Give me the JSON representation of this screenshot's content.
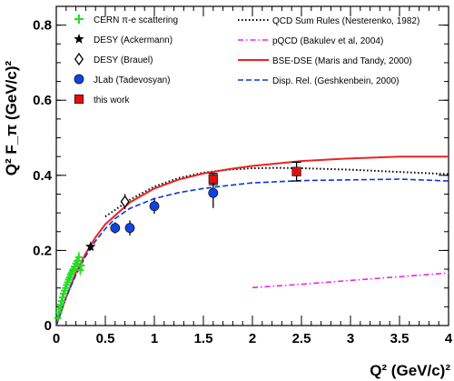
{
  "chart_data": {
    "type": "scatter",
    "xlabel": "Q² (GeV/c)²",
    "ylabel": "Q² F_π (GeV/c)²",
    "xlim": [
      0,
      4
    ],
    "ylim": [
      0,
      0.85
    ],
    "x_ticks": [
      "0",
      "0.5",
      "1",
      "1.5",
      "2",
      "2.5",
      "3",
      "3.5",
      "4"
    ],
    "y_ticks": [
      "0",
      "0.2",
      "0.4",
      "0.6",
      "0.8"
    ],
    "x_tick_values": [
      0,
      0.5,
      1,
      1.5,
      2,
      2.5,
      3,
      3.5,
      4
    ],
    "y_tick_values": [
      0,
      0.2,
      0.4,
      0.6,
      0.8
    ],
    "data_series": [
      {
        "name": "CERN π-e scattering",
        "marker": "cross",
        "color": "#22dd22",
        "points": [
          {
            "x": 0.015,
            "y": 0.02,
            "err": 0.0
          },
          {
            "x": 0.025,
            "y": 0.035,
            "err": 0.005
          },
          {
            "x": 0.035,
            "y": 0.045,
            "err": 0.005
          },
          {
            "x": 0.045,
            "y": 0.055,
            "err": 0.005
          },
          {
            "x": 0.055,
            "y": 0.065,
            "err": 0.005
          },
          {
            "x": 0.065,
            "y": 0.075,
            "err": 0.005
          },
          {
            "x": 0.075,
            "y": 0.085,
            "err": 0.006
          },
          {
            "x": 0.085,
            "y": 0.093,
            "err": 0.006
          },
          {
            "x": 0.095,
            "y": 0.1,
            "err": 0.006
          },
          {
            "x": 0.105,
            "y": 0.108,
            "err": 0.007
          },
          {
            "x": 0.115,
            "y": 0.115,
            "err": 0.007
          },
          {
            "x": 0.125,
            "y": 0.122,
            "err": 0.007
          },
          {
            "x": 0.135,
            "y": 0.128,
            "err": 0.008
          },
          {
            "x": 0.145,
            "y": 0.135,
            "err": 0.008
          },
          {
            "x": 0.155,
            "y": 0.14,
            "err": 0.009
          },
          {
            "x": 0.165,
            "y": 0.146,
            "err": 0.009
          },
          {
            "x": 0.175,
            "y": 0.15,
            "err": 0.01
          },
          {
            "x": 0.185,
            "y": 0.157,
            "err": 0.011
          },
          {
            "x": 0.2,
            "y": 0.165,
            "err": 0.012
          },
          {
            "x": 0.215,
            "y": 0.172,
            "err": 0.013
          },
          {
            "x": 0.23,
            "y": 0.182,
            "err": 0.014
          },
          {
            "x": 0.245,
            "y": 0.148,
            "err": 0.014
          },
          {
            "x": 0.255,
            "y": 0.16,
            "err": 0.015
          }
        ]
      },
      {
        "name": "DESY (Ackermann)",
        "marker": "star",
        "color": "#000000",
        "points": [
          {
            "x": 0.35,
            "y": 0.21,
            "err": 0.01
          }
        ]
      },
      {
        "name": "DESY (Brauel)",
        "marker": "diamond",
        "color": "#000000",
        "points": [
          {
            "x": 0.7,
            "y": 0.33,
            "err": 0.02
          }
        ]
      },
      {
        "name": "JLab (Tadevosyan)",
        "marker": "circle",
        "color": "#1144dd",
        "points": [
          {
            "x": 0.6,
            "y": 0.26,
            "err": 0.015
          },
          {
            "x": 0.75,
            "y": 0.26,
            "err": 0.02
          },
          {
            "x": 1.0,
            "y": 0.318,
            "err": 0.02
          },
          {
            "x": 1.6,
            "y": 0.353,
            "err": 0.04
          }
        ]
      },
      {
        "name": "this work",
        "marker": "square",
        "color": "#dd1111",
        "points": [
          {
            "x": 1.6,
            "y": 0.39,
            "err": 0.015
          },
          {
            "x": 2.45,
            "y": 0.41,
            "err": 0.025
          }
        ]
      }
    ],
    "curves": [
      {
        "name": "QCD Sum Rules (Nesterenko, 1982)",
        "style": "dotted",
        "color": "#000000",
        "x": [
          0.5,
          0.75,
          1.0,
          1.25,
          1.5,
          1.75,
          2.0,
          2.25,
          2.5,
          2.75,
          3.0,
          3.25,
          3.5,
          3.75,
          4.0
        ],
        "y": [
          0.29,
          0.335,
          0.37,
          0.393,
          0.407,
          0.415,
          0.419,
          0.42,
          0.419,
          0.417,
          0.415,
          0.412,
          0.409,
          0.406,
          0.403
        ]
      },
      {
        "name": "pQCD (Bakulev et al, 2004)",
        "style": "dashdot",
        "color": "#ee22ee",
        "x": [
          2.0,
          2.5,
          3.0,
          3.5,
          4.0
        ],
        "y": [
          0.101,
          0.11,
          0.12,
          0.13,
          0.14
        ]
      },
      {
        "name": "BSE-DSE (Maris and Tandy, 2000)",
        "style": "solid",
        "color": "#ee2222",
        "x": [
          0.0,
          0.1,
          0.2,
          0.3,
          0.4,
          0.5,
          0.75,
          1.0,
          1.25,
          1.5,
          1.75,
          2.0,
          2.5,
          3.0,
          3.5,
          4.0
        ],
        "y": [
          0.0,
          0.075,
          0.14,
          0.192,
          0.235,
          0.27,
          0.328,
          0.365,
          0.389,
          0.405,
          0.416,
          0.425,
          0.438,
          0.445,
          0.45,
          0.45
        ]
      },
      {
        "name": "Disp. Rel. (Geshkenbein, 2000)",
        "style": "dashed",
        "color": "#1133dd",
        "x": [
          0.0,
          0.1,
          0.2,
          0.3,
          0.4,
          0.5,
          0.6,
          0.75,
          1.0,
          1.25,
          1.5,
          1.75,
          2.0,
          2.5,
          3.0,
          3.5,
          4.0
        ],
        "y": [
          0.0,
          0.075,
          0.135,
          0.185,
          0.225,
          0.258,
          0.285,
          0.312,
          0.338,
          0.354,
          0.365,
          0.373,
          0.38,
          0.386,
          0.388,
          0.39,
          0.385
        ]
      }
    ],
    "legend_left": [
      {
        "label": "CERN π-e scattering",
        "marker": "cross",
        "color": "#22dd22"
      },
      {
        "label": "DESY (Ackermann)",
        "marker": "star",
        "color": "#000000"
      },
      {
        "label": "DESY (Brauel)",
        "marker": "diamond",
        "color": "#000000"
      },
      {
        "label": "JLab (Tadevosyan)",
        "marker": "circle",
        "color": "#1144dd"
      },
      {
        "label": "this work",
        "marker": "square",
        "color": "#dd1111"
      }
    ],
    "legend_right": [
      {
        "label": "QCD Sum Rules (Nesterenko, 1982)",
        "style": "dotted",
        "color": "#000000"
      },
      {
        "label": "pQCD (Bakulev et al, 2004)",
        "style": "dashdot",
        "color": "#ee22ee"
      },
      {
        "label": "BSE-DSE (Maris and Tandy, 2000)",
        "style": "solid",
        "color": "#ee2222"
      },
      {
        "label": "Disp. Rel. (Geshkenbein, 2000)",
        "style": "dashed",
        "color": "#1133dd"
      }
    ],
    "grid": false,
    "legend_placement": "top"
  }
}
